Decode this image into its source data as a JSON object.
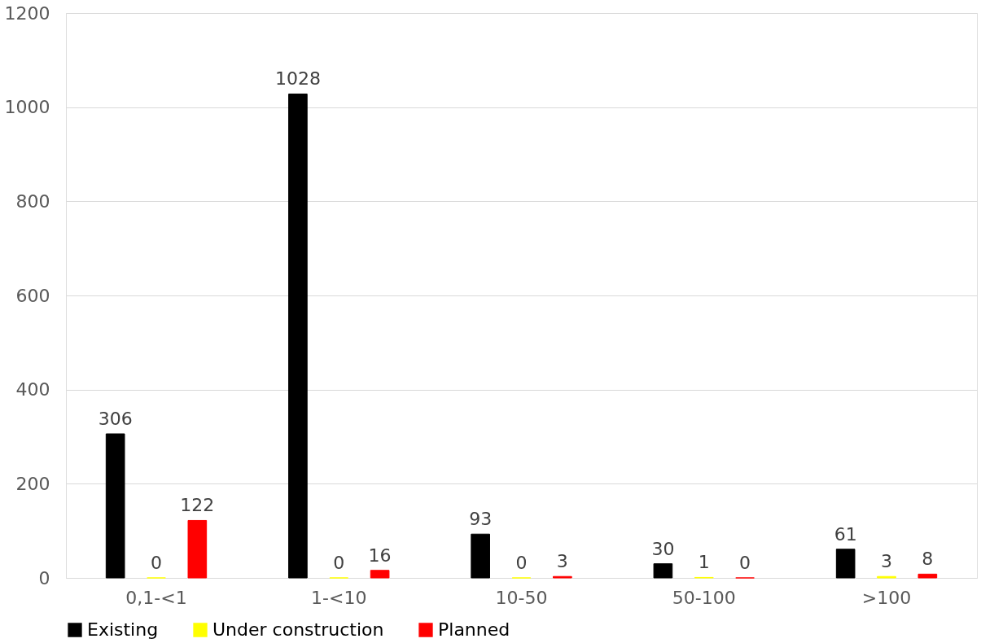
{
  "chart_data": {
    "type": "bar",
    "categories": [
      "0,1-<1",
      "1-<10",
      "10-50",
      "50-100",
      ">100"
    ],
    "series": [
      {
        "name": "Existing",
        "color": "#000000",
        "values": [
          306,
          1028,
          93,
          30,
          61
        ]
      },
      {
        "name": "Under construction",
        "color": "#ffff00",
        "values": [
          0,
          0,
          0,
          1,
          3
        ]
      },
      {
        "name": "Planned",
        "color": "#ff0000",
        "values": [
          122,
          16,
          3,
          0,
          8
        ]
      }
    ],
    "ylim": [
      0,
      1200
    ],
    "yticks": [
      0,
      200,
      400,
      600,
      800,
      1000,
      1200
    ],
    "grid": "y",
    "legend": "bottom",
    "data_labels": true
  }
}
